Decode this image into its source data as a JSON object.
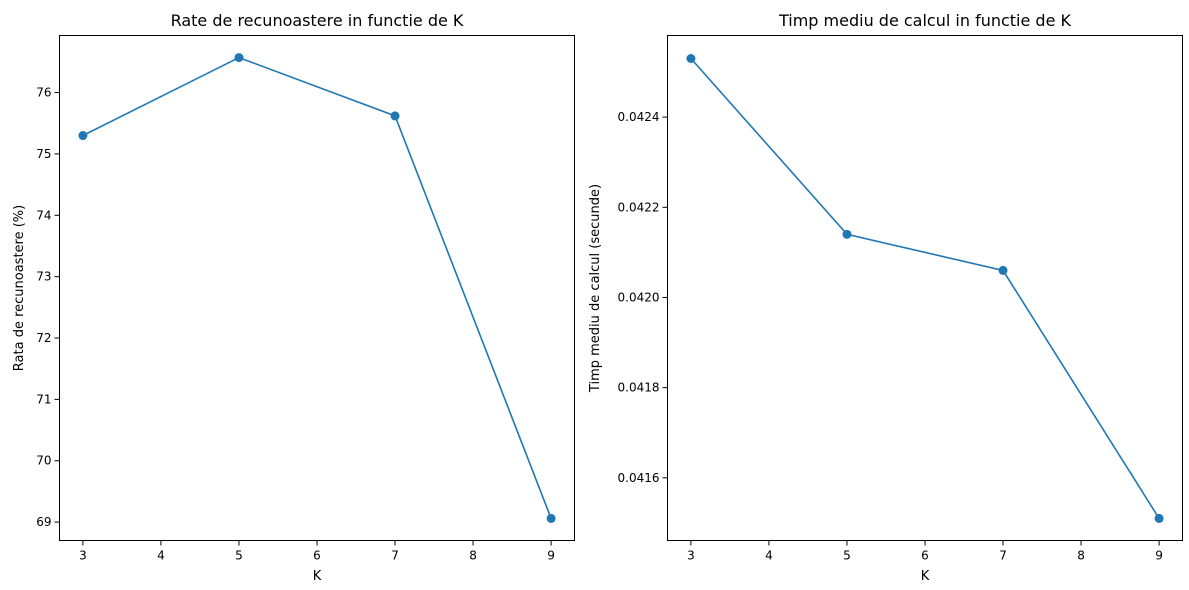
{
  "chart_data": [
    {
      "type": "line",
      "title": "Rate de recunoastere in functie de K",
      "xlabel": "K",
      "ylabel": "Rata de recunoastere (%)",
      "x": [
        3,
        5,
        7,
        9
      ],
      "series": [
        {
          "values": [
            75.3,
            76.57,
            75.62,
            69.06
          ],
          "color": "#1f77b4"
        }
      ],
      "xlim": [
        2.7,
        9.3
      ],
      "ylim": [
        68.7,
        76.93
      ],
      "xticks": [
        3,
        4,
        5,
        6,
        7,
        8,
        9
      ],
      "xtick_labels": [
        "3",
        "4",
        "5",
        "6",
        "7",
        "8",
        "9"
      ],
      "yticks": [
        69,
        70,
        71,
        72,
        73,
        74,
        75,
        76
      ],
      "ytick_labels": [
        "69",
        "70",
        "71",
        "72",
        "73",
        "74",
        "75",
        "76"
      ],
      "grid": false,
      "markers": true
    },
    {
      "type": "line",
      "title": "Timp mediu de calcul in functie de K",
      "xlabel": "K",
      "ylabel": "Timp mediu de calcul (secunde)",
      "x": [
        3,
        5,
        7,
        9
      ],
      "series": [
        {
          "values": [
            0.04253,
            0.04214,
            0.04206,
            0.04151
          ],
          "color": "#1f77b4"
        }
      ],
      "xlim": [
        2.7,
        9.3
      ],
      "ylim": [
        0.041461,
        0.042581
      ],
      "xticks": [
        3,
        4,
        5,
        6,
        7,
        8,
        9
      ],
      "xtick_labels": [
        "3",
        "4",
        "5",
        "6",
        "7",
        "8",
        "9"
      ],
      "yticks": [
        0.0416,
        0.0418,
        0.042,
        0.0422,
        0.0424
      ],
      "ytick_labels": [
        "0.0416",
        "0.0418",
        "0.0420",
        "0.0422",
        "0.0424"
      ],
      "grid": false,
      "markers": true
    }
  ]
}
